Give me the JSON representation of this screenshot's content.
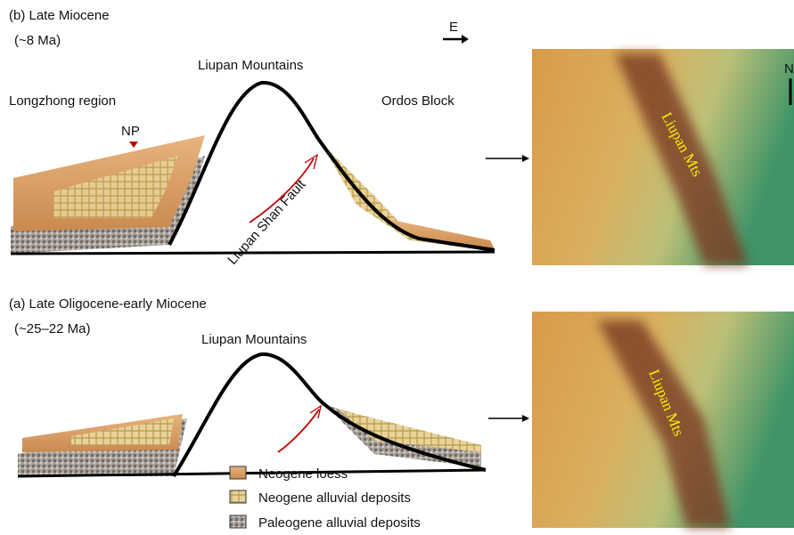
{
  "panel_b": {
    "label": "(b) Late Miocene",
    "age": "(~8 Ma)",
    "direction": "E",
    "mountain": "Liupan Mountains",
    "west": "Longzhong region",
    "east": "Ordos Block",
    "np": "NP",
    "fault": "Liupan Shan Fault",
    "map_label": "Liupan Mts",
    "north": "N"
  },
  "panel_a": {
    "label": "(a) Late Oligocene-early Miocene",
    "age": "(~25–22 Ma)",
    "mountain": "Liupan Mountains",
    "map_label": "Liupan Mts"
  },
  "legend": [
    "Neogene loess",
    "Neogene alluvial deposits",
    "Paleogene alluvial deposits"
  ]
}
